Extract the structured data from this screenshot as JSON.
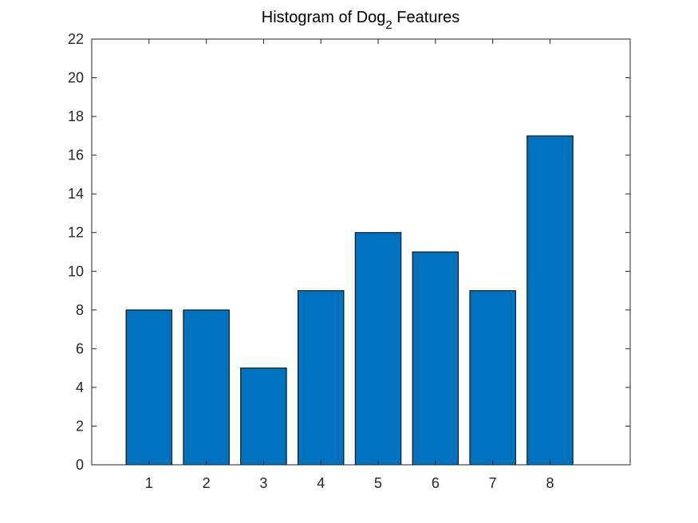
{
  "chart_data": {
    "type": "bar",
    "title": {
      "main": "Histogram of Dog",
      "subscript": "2",
      "suffix": "Features"
    },
    "categories": [
      "1",
      "2",
      "3",
      "4",
      "5",
      "6",
      "7",
      "8"
    ],
    "values": [
      8,
      8,
      5,
      9,
      12,
      11,
      9,
      17
    ],
    "ylim": [
      0,
      22
    ],
    "xlim": [
      0,
      9.4
    ],
    "yticks": [
      0,
      2,
      4,
      6,
      8,
      10,
      12,
      14,
      16,
      18,
      20,
      22
    ],
    "bar_color": "#0072BD",
    "bar_edge_color": "#000000",
    "grid": false,
    "xlabel": "",
    "ylabel": ""
  }
}
